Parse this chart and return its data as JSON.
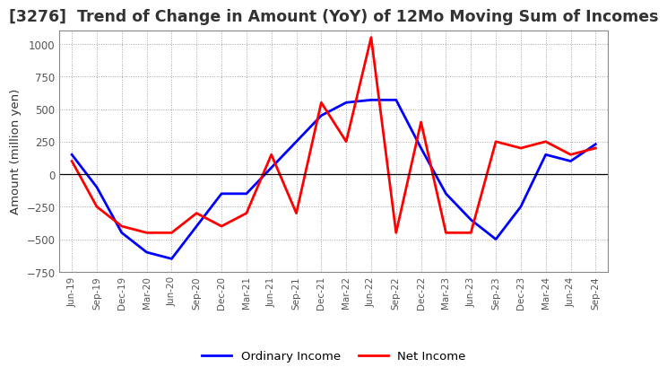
{
  "title": "[3276]  Trend of Change in Amount (YoY) of 12Mo Moving Sum of Incomes",
  "ylabel": "Amount (million yen)",
  "ylim": [
    -750,
    1100
  ],
  "yticks": [
    -750,
    -500,
    -250,
    0,
    250,
    500,
    750,
    1000
  ],
  "legend_labels": [
    "Ordinary Income",
    "Net Income"
  ],
  "line_colors": [
    "#0000ff",
    "#ff0000"
  ],
  "x_labels": [
    "Jun-19",
    "Sep-19",
    "Dec-19",
    "Mar-20",
    "Jun-20",
    "Sep-20",
    "Dec-20",
    "Mar-21",
    "Jun-21",
    "Sep-21",
    "Dec-21",
    "Mar-22",
    "Jun-22",
    "Sep-22",
    "Dec-22",
    "Mar-23",
    "Jun-23",
    "Sep-23",
    "Dec-23",
    "Mar-24",
    "Jun-24",
    "Sep-24"
  ],
  "ordinary_income": [
    150,
    -100,
    -450,
    -600,
    -650,
    -400,
    -150,
    -150,
    50,
    250,
    450,
    550,
    570,
    570,
    200,
    -150,
    -350,
    -500,
    -250,
    150,
    100,
    230
  ],
  "net_income": [
    100,
    -250,
    -400,
    -450,
    -450,
    -300,
    -400,
    -300,
    150,
    -300,
    550,
    250,
    1050,
    -450,
    400,
    -450,
    -450,
    250,
    200,
    250,
    150,
    200
  ],
  "background_color": "#ffffff",
  "grid_color": "#999999",
  "title_color": "#333333",
  "title_fontsize": 12.5,
  "label_fontsize": 9.5
}
